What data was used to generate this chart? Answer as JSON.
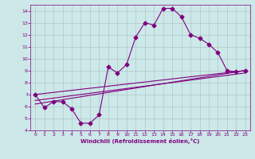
{
  "background_color": "#cce8e8",
  "grid_color": "#b0c8c8",
  "line_color": "#800080",
  "xlabel": "Windchill (Refroidissement éolien,°C)",
  "xlim": [
    -0.5,
    23.5
  ],
  "ylim": [
    4,
    14.5
  ],
  "yticks": [
    4,
    5,
    6,
    7,
    8,
    9,
    10,
    11,
    12,
    13,
    14
  ],
  "xticks": [
    0,
    1,
    2,
    3,
    4,
    5,
    6,
    7,
    8,
    9,
    10,
    11,
    12,
    13,
    14,
    15,
    16,
    17,
    18,
    19,
    20,
    21,
    22,
    23
  ],
  "line1_x": [
    0,
    1,
    2,
    3,
    4,
    5,
    6,
    7,
    8,
    9,
    10,
    11,
    12,
    13,
    14,
    15,
    16,
    17,
    18,
    19,
    20,
    21,
    22,
    23
  ],
  "line1_y": [
    7.0,
    5.9,
    6.4,
    6.4,
    5.8,
    4.6,
    4.6,
    5.3,
    9.3,
    8.8,
    9.5,
    11.8,
    13.0,
    12.8,
    14.2,
    14.2,
    13.5,
    12.0,
    11.7,
    11.2,
    10.5,
    9.0,
    8.9,
    9.0
  ],
  "line2_x": [
    0,
    23
  ],
  "line2_y": [
    7.0,
    9.0
  ],
  "line3_x": [
    0,
    23
  ],
  "line3_y": [
    6.5,
    8.8
  ],
  "line4_x": [
    0,
    23
  ],
  "line4_y": [
    6.2,
    9.0
  ]
}
